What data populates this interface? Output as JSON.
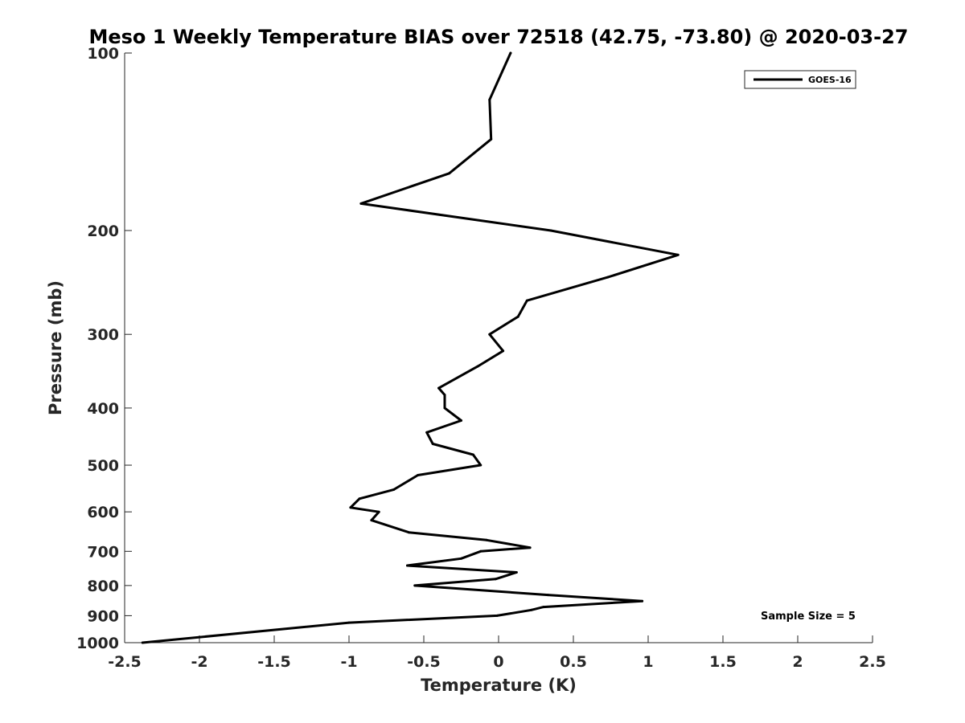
{
  "chart_data": {
    "type": "line",
    "title": "Meso 1 Weekly Temperature BIAS over 72518 (42.75, -73.80) @ 2020-03-27",
    "xlabel": "Temperature (K)",
    "ylabel": "Pressure (mb)",
    "xlim": [
      -2.5,
      2.5
    ],
    "ylim": [
      100,
      1000
    ],
    "y_scale": "log",
    "y_reversed": true,
    "grid": false,
    "legend_position": "top-right",
    "x_ticks": [
      -2.5,
      -2,
      -1.5,
      -1,
      -0.5,
      0,
      0.5,
      1,
      1.5,
      2,
      2.5
    ],
    "x_tick_labels": [
      "-2.5",
      "-2",
      "-1.5",
      "-1",
      "-0.5",
      "0",
      "0.5",
      "1",
      "1.5",
      "2",
      "2.5"
    ],
    "y_ticks": [
      100,
      200,
      300,
      400,
      500,
      600,
      700,
      800,
      900,
      1000
    ],
    "y_tick_labels": [
      "100",
      "200",
      "300",
      "400",
      "500",
      "600",
      "700",
      "800",
      "900",
      "1000"
    ],
    "series": [
      {
        "name": "GOES-16",
        "color": "#000000",
        "points": [
          {
            "x": 0.08,
            "y": 100
          },
          {
            "x": -0.06,
            "y": 120
          },
          {
            "x": -0.05,
            "y": 140
          },
          {
            "x": -0.33,
            "y": 160
          },
          {
            "x": -0.92,
            "y": 180
          },
          {
            "x": 0.35,
            "y": 200
          },
          {
            "x": 1.2,
            "y": 220
          },
          {
            "x": 0.73,
            "y": 240
          },
          {
            "x": 0.19,
            "y": 263
          },
          {
            "x": 0.13,
            "y": 280
          },
          {
            "x": -0.06,
            "y": 300
          },
          {
            "x": 0.03,
            "y": 320
          },
          {
            "x": -0.14,
            "y": 340
          },
          {
            "x": -0.4,
            "y": 370
          },
          {
            "x": -0.36,
            "y": 380
          },
          {
            "x": -0.36,
            "y": 400
          },
          {
            "x": -0.25,
            "y": 420
          },
          {
            "x": -0.48,
            "y": 440
          },
          {
            "x": -0.44,
            "y": 460
          },
          {
            "x": -0.17,
            "y": 480
          },
          {
            "x": -0.12,
            "y": 500
          },
          {
            "x": -0.54,
            "y": 520
          },
          {
            "x": -0.7,
            "y": 550
          },
          {
            "x": -0.93,
            "y": 570
          },
          {
            "x": -0.99,
            "y": 590
          },
          {
            "x": -0.8,
            "y": 600
          },
          {
            "x": -0.85,
            "y": 620
          },
          {
            "x": -0.6,
            "y": 650
          },
          {
            "x": -0.08,
            "y": 670
          },
          {
            "x": 0.21,
            "y": 690
          },
          {
            "x": -0.12,
            "y": 700
          },
          {
            "x": -0.25,
            "y": 720
          },
          {
            "x": -0.61,
            "y": 740
          },
          {
            "x": 0.12,
            "y": 760
          },
          {
            "x": -0.02,
            "y": 780
          },
          {
            "x": -0.56,
            "y": 800
          },
          {
            "x": 0.33,
            "y": 830
          },
          {
            "x": 0.96,
            "y": 850
          },
          {
            "x": 0.3,
            "y": 870
          },
          {
            "x": 0.22,
            "y": 880
          },
          {
            "x": -0.01,
            "y": 900
          },
          {
            "x": -1.0,
            "y": 925
          },
          {
            "x": -2.38,
            "y": 1000
          }
        ]
      }
    ],
    "annotations": [
      {
        "text": "Sample Size = 5",
        "position": "bottom-right"
      }
    ]
  }
}
